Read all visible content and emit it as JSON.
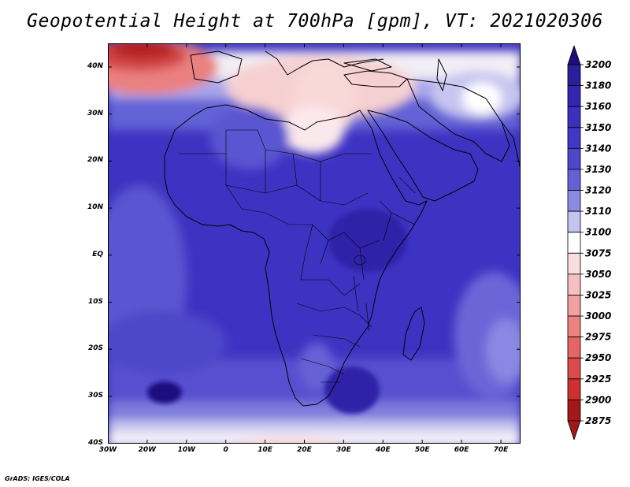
{
  "title": "Geopotential Height at 700hPa [gpm], VT: 2021020306",
  "credit": "GrADS: IGES/COLA",
  "lat_labels": [
    "40N",
    "30N",
    "20N",
    "10N",
    "EQ",
    "10S",
    "20S",
    "30S",
    "40S"
  ],
  "lon_labels": [
    "30W",
    "20W",
    "10W",
    "0",
    "10E",
    "20E",
    "30E",
    "40E",
    "50E",
    "60E",
    "70E"
  ],
  "colorbar": {
    "levels": [
      "3200",
      "3180",
      "3160",
      "3150",
      "3140",
      "3130",
      "3120",
      "3110",
      "3100",
      "3075",
      "3050",
      "3025",
      "3000",
      "2975",
      "2950",
      "2925",
      "2900",
      "2875"
    ],
    "colors": [
      "#1c0f7a",
      "#2a1f9c",
      "#3526b2",
      "#3a2fbe",
      "#4137c6",
      "#4e47cc",
      "#6461d6",
      "#8c8be2",
      "#c4c4f0",
      "#ffffff",
      "#fadcdc",
      "#f6c0c0",
      "#f2a0a0",
      "#ec8282",
      "#e66464",
      "#dd4a4a",
      "#cc3030",
      "#a31818"
    ]
  }
}
